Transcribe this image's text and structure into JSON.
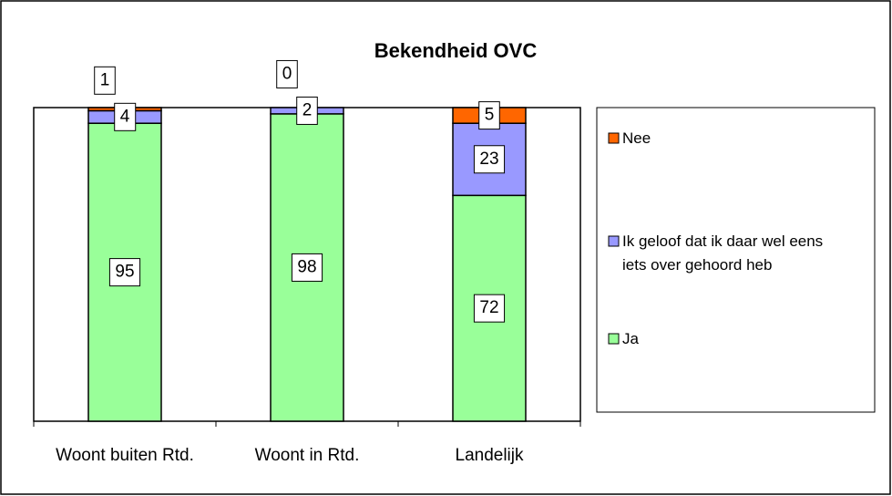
{
  "chart_data": {
    "type": "stacked_bar",
    "title": "Bekendheid OVC",
    "categories": [
      "Woont buiten Rtd.",
      "Woont in Rtd.",
      "Landelijk"
    ],
    "series": [
      {
        "name": "Ja",
        "color": "#99ff99",
        "values": [
          95,
          98,
          72
        ]
      },
      {
        "name": "Ik geloof dat ik daar wel eens iets over gehoord heb",
        "color": "#9999ff",
        "values": [
          4,
          2,
          23
        ]
      },
      {
        "name": "Nee",
        "color": "#ff6600",
        "values": [
          1,
          0,
          5
        ]
      }
    ],
    "ylim": [
      0,
      100
    ],
    "legend": "right"
  }
}
